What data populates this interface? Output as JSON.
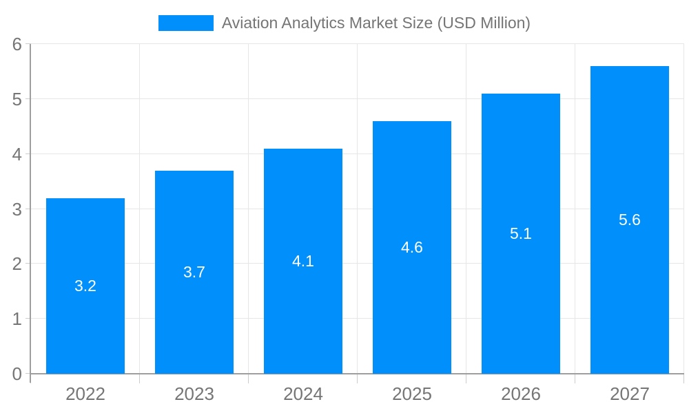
{
  "chart_data": {
    "type": "bar",
    "title": "Aviation Analytics Market Size (USD Million)",
    "legend": {
      "position": "top",
      "label": "Aviation Analytics Market Size (USD Million)"
    },
    "categories": [
      "2022",
      "2023",
      "2024",
      "2025",
      "2026",
      "2027"
    ],
    "series": [
      {
        "name": "Aviation Analytics Market Size (USD Million)",
        "values": [
          3.2,
          3.7,
          4.1,
          4.6,
          5.1,
          5.6
        ]
      }
    ],
    "value_labels": [
      "3.2",
      "3.7",
      "4.1",
      "4.6",
      "5.1",
      "5.6"
    ],
    "xlabel": "",
    "ylabel": "",
    "ylim": [
      0,
      6
    ],
    "yticks": [
      "0",
      "1",
      "2",
      "3",
      "4",
      "5",
      "6"
    ],
    "ytick_step": 1,
    "grid": true,
    "value_label_position": "inside-center",
    "colors": {
      "bar": "#008FFB",
      "value_label": "#FFFFFF",
      "axis": "#9E9E9E",
      "gridline": "#E6E6E6",
      "tick": "#CCCCCC",
      "label_text": "#757575",
      "background": "#FFFFFF"
    }
  }
}
